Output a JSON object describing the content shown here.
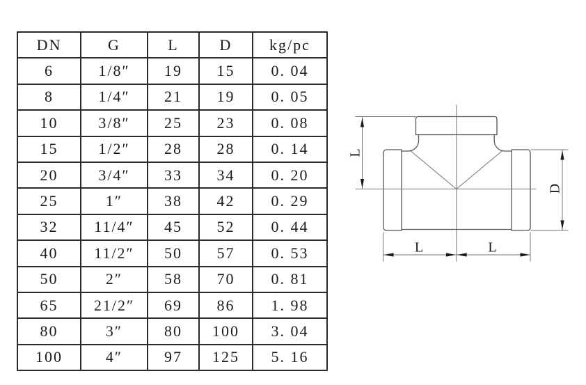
{
  "table": {
    "headers": [
      "DN",
      "G",
      "L",
      "D",
      "kg/pc"
    ],
    "rows": [
      [
        "6",
        "1/8″",
        "19",
        "15",
        "0. 04"
      ],
      [
        "8",
        "1/4″",
        "21",
        "19",
        "0. 05"
      ],
      [
        "10",
        "3/8″",
        "25",
        "23",
        "0. 08"
      ],
      [
        "15",
        "1/2″",
        "28",
        "28",
        "0. 14"
      ],
      [
        "20",
        "3/4″",
        "33",
        "34",
        "0. 20"
      ],
      [
        "25",
        "1″",
        "38",
        "42",
        "0. 29"
      ],
      [
        "32",
        "11/4″",
        "45",
        "52",
        "0. 44"
      ],
      [
        "40",
        "11/2″",
        "50",
        "57",
        "0. 53"
      ],
      [
        "50",
        "2″",
        "58",
        "70",
        "0. 81"
      ],
      [
        "65",
        "21/2″",
        "69",
        "86",
        "1. 98"
      ],
      [
        "80",
        "3″",
        "80",
        "100",
        "3. 04"
      ],
      [
        "100",
        "4″",
        "97",
        "125",
        "5. 16"
      ]
    ]
  },
  "diagram": {
    "labels": {
      "left_dim": "L",
      "right_dim": "D",
      "bottom_left_dim": "L",
      "bottom_right_dim": "L"
    }
  },
  "colors": {
    "table_border": "#2b2b2b",
    "text": "#1b1b1b",
    "object_line": "#555555",
    "thin_line": "#767676",
    "arrow": "#1a1a1a"
  }
}
